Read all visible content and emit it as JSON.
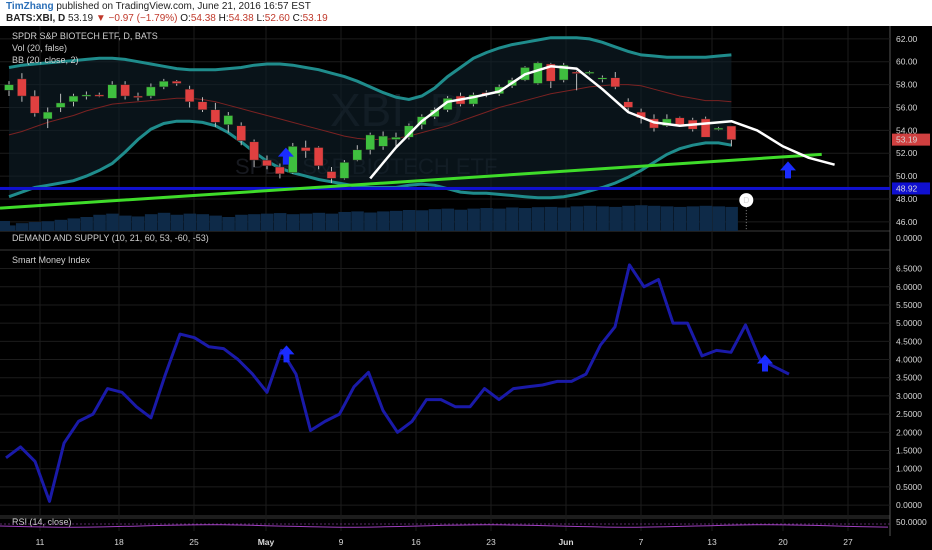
{
  "header": {
    "author": "TimZhang",
    "published": "published on TradingView.com, June 21, 2016 16:57 EST",
    "symbol": "BATS:XBI, D",
    "price": "53.19",
    "change": "−0.97 (−1.79%)",
    "o_label": "O:",
    "o_value": "54.38",
    "h_label": "H:",
    "h_value": "54.38",
    "l_label": "L:",
    "l_value": "52.60",
    "c_label": "C:",
    "c_value": "53.19"
  },
  "chart_data": [
    {
      "type": "candlestick",
      "title": "SPDR S&P BIOTECH ETF, D, BATS",
      "legend": [
        "Vol (20, false)",
        "BB (20, close, 2)"
      ],
      "watermark": "XBI, D",
      "watermark_sub": "SPDR S&P BIOTECH ETF",
      "y_ticks": [
        "62.00",
        "60.00",
        "58.00",
        "56.00",
        "54.00",
        "52.00",
        "50.00",
        "48.00",
        "46.00"
      ],
      "ylim": [
        45.2,
        62.6
      ],
      "price_label": "53.19",
      "hline_label": "48.92",
      "hline_value": 48.92,
      "dividend_marker": "D",
      "candles": [
        {
          "o": 57.5,
          "h": 58.3,
          "l": 57.0,
          "c": 58.0
        },
        {
          "o": 58.5,
          "h": 59.0,
          "l": 56.5,
          "c": 57.0
        },
        {
          "o": 57.0,
          "h": 57.5,
          "l": 55.2,
          "c": 55.5
        },
        {
          "o": 55.0,
          "h": 56.0,
          "l": 54.2,
          "c": 55.6
        },
        {
          "o": 56.0,
          "h": 57.2,
          "l": 55.6,
          "c": 56.4
        },
        {
          "o": 56.5,
          "h": 57.2,
          "l": 56.1,
          "c": 57.0
        },
        {
          "o": 57.0,
          "h": 57.4,
          "l": 56.7,
          "c": 57.1
        },
        {
          "o": 57.1,
          "h": 57.3,
          "l": 56.9,
          "c": 57.0
        },
        {
          "o": 56.8,
          "h": 58.3,
          "l": 56.8,
          "c": 58.0
        },
        {
          "o": 58.0,
          "h": 58.3,
          "l": 56.7,
          "c": 57.0
        },
        {
          "o": 57.0,
          "h": 57.3,
          "l": 56.6,
          "c": 56.9
        },
        {
          "o": 57.0,
          "h": 58.1,
          "l": 56.8,
          "c": 57.8
        },
        {
          "o": 57.8,
          "h": 58.5,
          "l": 57.6,
          "c": 58.3
        },
        {
          "o": 58.3,
          "h": 58.4,
          "l": 57.9,
          "c": 58.1
        },
        {
          "o": 57.6,
          "h": 57.9,
          "l": 56.0,
          "c": 56.5
        },
        {
          "o": 56.5,
          "h": 56.9,
          "l": 55.6,
          "c": 55.8
        },
        {
          "o": 55.8,
          "h": 56.4,
          "l": 54.3,
          "c": 54.7
        },
        {
          "o": 54.5,
          "h": 55.6,
          "l": 53.8,
          "c": 55.3
        },
        {
          "o": 54.4,
          "h": 54.7,
          "l": 52.7,
          "c": 53.1
        },
        {
          "o": 53.0,
          "h": 53.2,
          "l": 50.8,
          "c": 51.4
        },
        {
          "o": 51.4,
          "h": 51.8,
          "l": 50.6,
          "c": 50.9
        },
        {
          "o": 50.8,
          "h": 51.1,
          "l": 49.8,
          "c": 50.2
        },
        {
          "o": 50.3,
          "h": 52.9,
          "l": 50.2,
          "c": 52.6
        },
        {
          "o": 52.5,
          "h": 53.1,
          "l": 51.6,
          "c": 52.2
        },
        {
          "o": 52.5,
          "h": 52.6,
          "l": 50.6,
          "c": 50.9
        },
        {
          "o": 50.4,
          "h": 50.8,
          "l": 49.4,
          "c": 49.8
        },
        {
          "o": 49.8,
          "h": 51.4,
          "l": 49.7,
          "c": 51.2
        },
        {
          "o": 51.4,
          "h": 52.7,
          "l": 51.3,
          "c": 52.3
        },
        {
          "o": 52.3,
          "h": 53.8,
          "l": 51.9,
          "c": 53.6
        },
        {
          "o": 52.6,
          "h": 53.9,
          "l": 52.3,
          "c": 53.5
        },
        {
          "o": 53.2,
          "h": 53.8,
          "l": 52.6,
          "c": 53.4
        },
        {
          "o": 53.4,
          "h": 54.6,
          "l": 53.2,
          "c": 54.4
        },
        {
          "o": 54.5,
          "h": 55.4,
          "l": 54.1,
          "c": 55.2
        },
        {
          "o": 55.2,
          "h": 56.0,
          "l": 55.0,
          "c": 55.8
        },
        {
          "o": 55.8,
          "h": 57.0,
          "l": 55.6,
          "c": 56.8
        },
        {
          "o": 57.0,
          "h": 57.3,
          "l": 56.1,
          "c": 56.3
        },
        {
          "o": 56.3,
          "h": 57.3,
          "l": 56.1,
          "c": 57.1
        },
        {
          "o": 57.3,
          "h": 57.5,
          "l": 56.9,
          "c": 57.2
        },
        {
          "o": 57.2,
          "h": 58.0,
          "l": 57.0,
          "c": 57.8
        },
        {
          "o": 57.9,
          "h": 58.6,
          "l": 57.7,
          "c": 58.4
        },
        {
          "o": 58.4,
          "h": 59.6,
          "l": 58.3,
          "c": 59.5
        },
        {
          "o": 58.1,
          "h": 60.0,
          "l": 58.0,
          "c": 59.9
        },
        {
          "o": 59.8,
          "h": 59.9,
          "l": 57.7,
          "c": 58.3
        },
        {
          "o": 58.4,
          "h": 59.9,
          "l": 58.2,
          "c": 59.7
        },
        {
          "o": 59.1,
          "h": 59.2,
          "l": 57.5,
          "c": 59.0
        },
        {
          "o": 59.0,
          "h": 59.2,
          "l": 58.9,
          "c": 59.1
        },
        {
          "o": 58.6,
          "h": 58.8,
          "l": 58.2,
          "c": 58.6
        },
        {
          "o": 58.6,
          "h": 59.1,
          "l": 57.6,
          "c": 57.8
        },
        {
          "o": 56.5,
          "h": 56.8,
          "l": 55.7,
          "c": 56.0
        },
        {
          "o": 55.6,
          "h": 55.9,
          "l": 54.6,
          "c": 55.1
        },
        {
          "o": 55.0,
          "h": 55.4,
          "l": 53.9,
          "c": 54.2
        },
        {
          "o": 54.4,
          "h": 55.4,
          "l": 54.3,
          "c": 55.0
        },
        {
          "o": 55.1,
          "h": 55.2,
          "l": 54.5,
          "c": 54.5
        },
        {
          "o": 54.9,
          "h": 55.1,
          "l": 53.9,
          "c": 54.1
        },
        {
          "o": 55.0,
          "h": 55.2,
          "l": 53.4,
          "c": 53.4
        },
        {
          "o": 54.2,
          "h": 54.3,
          "l": 54.0,
          "c": 54.2
        },
        {
          "o": 54.38,
          "h": 54.38,
          "l": 52.6,
          "c": 53.19
        }
      ],
      "bb_upper": [
        59.5,
        59.7,
        59.8,
        59.9,
        60.0,
        60.1,
        60.2,
        60.3,
        60.3,
        60.2,
        60.0,
        59.8,
        59.6,
        59.4,
        59.3,
        59.3,
        59.3,
        59.4,
        59.5,
        59.7,
        59.8,
        59.8,
        59.7,
        59.5,
        59.3,
        59.0,
        58.7,
        58.3,
        57.8,
        57.3,
        56.9,
        56.7,
        57.0,
        57.7,
        58.7,
        59.5,
        60.3,
        60.8,
        61.2,
        61.5,
        61.7,
        61.9,
        62.1,
        62.1,
        62.1,
        62.0,
        61.7,
        61.3,
        60.9,
        60.6,
        60.5,
        60.4,
        60.4,
        60.4,
        60.4,
        60.5,
        60.6
      ],
      "bb_lower": [
        48.2,
        48.6,
        49.0,
        49.2,
        49.4,
        49.6,
        50.0,
        50.5,
        51.1,
        52.1,
        53.2,
        54.1,
        54.6,
        54.8,
        54.8,
        54.7,
        54.4,
        53.8,
        53.0,
        52.1,
        51.3,
        50.7,
        50.3,
        50.0,
        49.7,
        49.5,
        49.3,
        49.1,
        49.0,
        49.0,
        49.0,
        49.2,
        49.3,
        49.2,
        48.9,
        48.6,
        48.5,
        48.5,
        48.4,
        48.3,
        48.2,
        48.1,
        48.1,
        48.2,
        48.4,
        48.7,
        49.0,
        49.4,
        49.9,
        50.5,
        51.2,
        51.9,
        52.4,
        52.7,
        52.9,
        52.9,
        52.7
      ],
      "bb_basis": [
        53.6,
        53.9,
        54.3,
        54.7,
        55.0,
        55.3,
        55.7,
        56.0,
        56.3,
        56.4,
        56.5,
        56.6,
        56.7,
        56.8,
        56.8,
        56.7,
        56.5,
        56.2,
        55.9,
        55.6,
        55.3,
        55.0,
        54.7,
        54.4,
        54.1,
        53.8,
        53.5,
        53.3,
        53.2,
        53.2,
        53.3,
        53.5,
        53.8,
        54.1,
        54.4,
        54.8,
        55.2,
        55.6,
        56.0,
        56.3,
        56.6,
        56.9,
        57.2,
        57.4,
        57.6,
        57.8,
        57.9,
        58.0,
        58.0,
        57.9,
        57.6,
        57.3,
        57.0,
        56.8,
        56.6,
        56.6,
        56.5
      ],
      "volume": [
        0.2,
        0.28,
        0.32,
        0.35,
        0.4,
        0.45,
        0.5,
        0.58,
        0.62,
        0.55,
        0.52,
        0.6,
        0.65,
        0.58,
        0.62,
        0.6,
        0.55,
        0.5,
        0.58,
        0.6,
        0.62,
        0.64,
        0.6,
        0.62,
        0.65,
        0.62,
        0.68,
        0.7,
        0.66,
        0.7,
        0.72,
        0.75,
        0.74,
        0.78,
        0.8,
        0.76,
        0.8,
        0.82,
        0.8,
        0.84,
        0.82,
        0.85,
        0.86,
        0.84,
        0.88,
        0.9,
        0.88,
        0.86,
        0.9,
        0.92,
        0.9,
        0.88,
        0.86,
        0.88,
        0.9,
        0.88,
        0.86
      ],
      "projection_white": [
        [
          28,
          49.8
        ],
        [
          30,
          52.5
        ],
        [
          32,
          54.8
        ],
        [
          34,
          56.5
        ],
        [
          36,
          56.9
        ],
        [
          38,
          57.4
        ],
        [
          40,
          58.9
        ],
        [
          42,
          59.6
        ],
        [
          44,
          59.4
        ],
        [
          46,
          57.6
        ],
        [
          48,
          55.6
        ],
        [
          50,
          54.7
        ],
        [
          52,
          54.4
        ],
        [
          54,
          54.6
        ],
        [
          56,
          54.8
        ],
        [
          58,
          54.0
        ],
        [
          60,
          52.6
        ],
        [
          62,
          51.6
        ],
        [
          64,
          51.0
        ]
      ],
      "trendline_green": {
        "from": [
          0,
          47.2
        ],
        "to": [
          63,
          51.9
        ]
      }
    },
    {
      "type": "indicator",
      "title": "DEMAND AND SUPPLY (10, 21, 60, 53, -60, -53)",
      "y_ticks": [
        "0.0000"
      ]
    },
    {
      "type": "line",
      "title": "Smart Money Index",
      "y_ticks": [
        "6.5000",
        "6.0000",
        "5.5000",
        "5.0000",
        "4.5000",
        "4.0000",
        "3.5000",
        "3.0000",
        "2.5000",
        "2.0000",
        "1.5000",
        "1.0000",
        "0.5000",
        "0.0000"
      ],
      "ylim": [
        -0.3,
        6.9
      ],
      "values": [
        1.3,
        1.6,
        1.2,
        0.1,
        1.7,
        2.3,
        2.5,
        3.2,
        3.1,
        2.7,
        2.4,
        3.6,
        4.7,
        4.6,
        4.35,
        4.3,
        4.0,
        3.6,
        3.1,
        4.25,
        3.6,
        2.05,
        2.3,
        2.5,
        3.25,
        3.65,
        2.6,
        2.0,
        2.3,
        2.9,
        2.9,
        2.7,
        2.7,
        3.2,
        2.9,
        3.2,
        3.25,
        3.3,
        3.4,
        3.4,
        3.6,
        4.4,
        4.9,
        6.6,
        6.0,
        6.2,
        5.0,
        5.0,
        4.1,
        4.25,
        4.2,
        4.95,
        4.0,
        3.8,
        3.6
      ],
      "arrows": [
        19,
        52
      ]
    },
    {
      "type": "line",
      "title": "RSI (14, close)",
      "y_ticks": [
        "50.0000"
      ]
    }
  ],
  "x_axis": {
    "labels": [
      "11",
      "18",
      "25",
      "May",
      "9",
      "16",
      "23",
      "Jun",
      "7",
      "13",
      "20",
      "27"
    ]
  }
}
